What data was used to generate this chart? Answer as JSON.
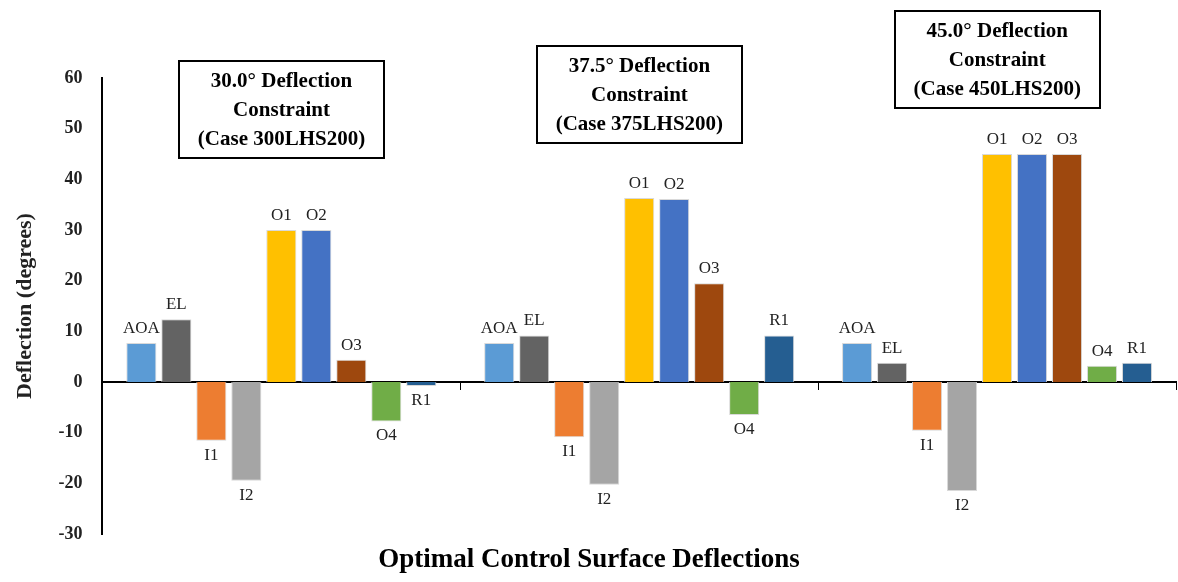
{
  "chart_data": {
    "type": "bar",
    "xlabel": "Optimal Control Surface Deflections",
    "ylabel": "Deflection (degrees)",
    "categories": [
      null,
      null,
      null
    ],
    "series": [
      {
        "name": "AOA",
        "color": "#5b9bd5",
        "values": [
          7.7,
          7.7,
          7.7
        ]
      },
      {
        "name": "EL",
        "color": "#636363",
        "values": [
          12.4,
          9.2,
          3.8
        ]
      },
      {
        "name": "I1",
        "color": "#ed7d31",
        "values": [
          -11.6,
          -10.9,
          -9.6
        ]
      },
      {
        "name": "I2",
        "color": "#a5a5a5",
        "values": [
          -19.5,
          -20.3,
          -21.5
        ]
      },
      {
        "name": "O1",
        "color": "#ffc000",
        "values": [
          30,
          36.3,
          45
        ]
      },
      {
        "name": "O2",
        "color": "#4472c4",
        "values": [
          30,
          36.1,
          45
        ]
      },
      {
        "name": "O3",
        "color": "#9e480e",
        "values": [
          4.4,
          19.5,
          45
        ]
      },
      {
        "name": "O4",
        "color": "#70ad47",
        "values": [
          -7.8,
          -6.5,
          3.2
        ]
      },
      {
        "name": "R1",
        "color": "#255e91",
        "values": [
          -0.8,
          9.2,
          3.8
        ]
      }
    ],
    "ylim": [
      -30,
      60
    ],
    "yticks": [
      -30,
      -20,
      -10,
      0,
      10,
      20,
      30,
      40,
      50,
      60
    ],
    "legend": false,
    "tick_labels": "y",
    "annotations": [
      "30.0° Deflection\nConstraint\n(Case 300LHS200)",
      "37.5° Deflection\nConstraint\n(Case 375LHS200)",
      "45.0° Deflection\nConstraint\n(Case 450LHS200)"
    ]
  }
}
